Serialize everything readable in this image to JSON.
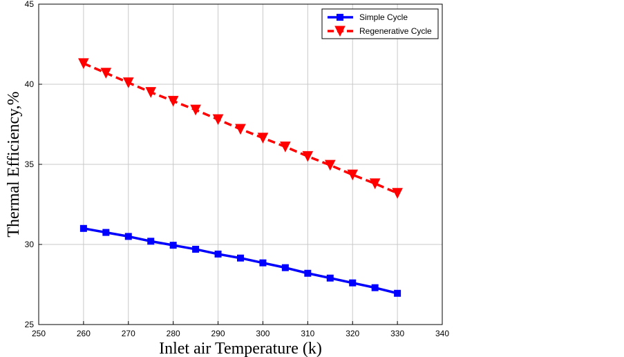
{
  "chart_data": {
    "type": "line",
    "xlabel": "Inlet air Temperature (k)",
    "ylabel": "Thermal Efficiency,%",
    "xlim": [
      250,
      340
    ],
    "ylim": [
      25,
      45
    ],
    "x_ticks": [
      "250",
      "260",
      "270",
      "280",
      "290",
      "300",
      "310",
      "320",
      "330",
      "340"
    ],
    "y_ticks": [
      "25",
      "30",
      "35",
      "40",
      "45"
    ],
    "grid": true,
    "legend_position": "top-right",
    "x": [
      260,
      265,
      270,
      275,
      280,
      285,
      290,
      295,
      300,
      305,
      310,
      315,
      320,
      325,
      330
    ],
    "series": [
      {
        "name": "Simple Cycle",
        "color": "#0000ff",
        "marker": "square",
        "line_style": "solid",
        "values": [
          31.0,
          30.75,
          30.5,
          30.2,
          29.95,
          29.7,
          29.4,
          29.15,
          28.85,
          28.55,
          28.2,
          27.9,
          27.6,
          27.3,
          26.95
        ]
      },
      {
        "name": "Regenerative Cycle",
        "color": "#ff0000",
        "marker": "triangle-down",
        "line_style": "dashed",
        "values": [
          41.3,
          40.7,
          40.1,
          39.5,
          38.95,
          38.4,
          37.8,
          37.2,
          36.65,
          36.1,
          35.5,
          34.95,
          34.35,
          33.8,
          33.2
        ]
      }
    ]
  }
}
